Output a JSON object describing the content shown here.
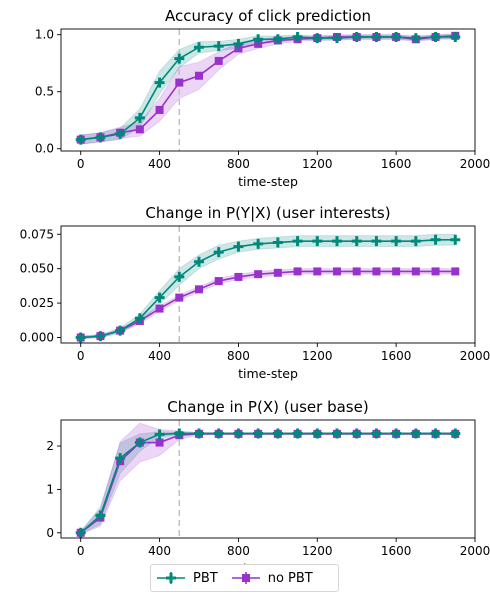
{
  "chart_data": [
    {
      "type": "line",
      "title": "Accuracy of click prediction",
      "xlabel": "time-step",
      "ylabel": "",
      "xlim": [
        -100,
        2000
      ],
      "ylim": [
        -0.02,
        1.05
      ],
      "xticks": [
        "0",
        "400",
        "800",
        "1200",
        "1600",
        "2000"
      ],
      "yticks": [
        "0.0",
        "0.5",
        "1.0"
      ],
      "vline_x": 500,
      "x": [
        0,
        100,
        200,
        300,
        400,
        500,
        600,
        700,
        800,
        900,
        1000,
        1100,
        1200,
        1300,
        1400,
        1500,
        1600,
        1700,
        1800,
        1900
      ],
      "series": [
        {
          "name": "PBT",
          "color": "#00897b",
          "values": [
            0.08,
            0.1,
            0.13,
            0.27,
            0.58,
            0.79,
            0.89,
            0.9,
            0.92,
            0.96,
            0.96,
            0.98,
            0.97,
            0.97,
            0.98,
            0.98,
            0.98,
            0.97,
            0.98,
            0.98
          ],
          "band": [
            0.04,
            0.04,
            0.05,
            0.08,
            0.1,
            0.08,
            0.05,
            0.04,
            0.04,
            0.03,
            0.03,
            0.02,
            0.02,
            0.02,
            0.02,
            0.02,
            0.02,
            0.02,
            0.02,
            0.02
          ]
        },
        {
          "name": "no PBT",
          "color": "#9932cc",
          "values": [
            0.08,
            0.1,
            0.14,
            0.17,
            0.34,
            0.58,
            0.64,
            0.77,
            0.88,
            0.92,
            0.95,
            0.96,
            0.97,
            0.98,
            0.98,
            0.98,
            0.98,
            0.96,
            0.98,
            0.99
          ],
          "band": [
            0.04,
            0.04,
            0.05,
            0.06,
            0.1,
            0.14,
            0.12,
            0.08,
            0.05,
            0.04,
            0.03,
            0.02,
            0.02,
            0.02,
            0.02,
            0.02,
            0.02,
            0.02,
            0.02,
            0.02
          ]
        }
      ]
    },
    {
      "type": "line",
      "title": "Change in P(Y|X) (user interests)",
      "xlabel": "time-step",
      "ylabel": "",
      "xlim": [
        -100,
        2000
      ],
      "ylim": [
        -0.004,
        0.081
      ],
      "xticks": [
        "0",
        "400",
        "800",
        "1200",
        "1600",
        "2000"
      ],
      "yticks": [
        "0.000",
        "0.025",
        "0.050",
        "0.075"
      ],
      "vline_x": 500,
      "x": [
        0,
        100,
        200,
        300,
        400,
        500,
        600,
        700,
        800,
        900,
        1000,
        1100,
        1200,
        1300,
        1400,
        1500,
        1600,
        1700,
        1800,
        1900
      ],
      "series": [
        {
          "name": "PBT",
          "color": "#00897b",
          "values": [
            0.0,
            0.001,
            0.005,
            0.014,
            0.029,
            0.044,
            0.055,
            0.062,
            0.066,
            0.068,
            0.069,
            0.07,
            0.07,
            0.07,
            0.07,
            0.07,
            0.07,
            0.07,
            0.071,
            0.071
          ],
          "band": [
            0.001,
            0.001,
            0.002,
            0.003,
            0.005,
            0.006,
            0.005,
            0.005,
            0.004,
            0.004,
            0.004,
            0.004,
            0.004,
            0.004,
            0.004,
            0.004,
            0.004,
            0.004,
            0.004,
            0.004
          ]
        },
        {
          "name": "no PBT",
          "color": "#9932cc",
          "values": [
            0.0,
            0.001,
            0.005,
            0.012,
            0.021,
            0.029,
            0.035,
            0.041,
            0.044,
            0.046,
            0.047,
            0.048,
            0.048,
            0.048,
            0.048,
            0.048,
            0.048,
            0.048,
            0.048,
            0.048
          ],
          "band": [
            0.001,
            0.001,
            0.001,
            0.002,
            0.002,
            0.002,
            0.002,
            0.002,
            0.002,
            0.002,
            0.002,
            0.002,
            0.002,
            0.002,
            0.002,
            0.002,
            0.002,
            0.002,
            0.002,
            0.002
          ]
        }
      ]
    },
    {
      "type": "line",
      "title": "Change in P(X) (user base)",
      "xlabel": "time-step",
      "ylabel": "",
      "xlim": [
        -100,
        2000
      ],
      "ylim": [
        -0.12,
        2.6
      ],
      "xticks": [
        "0",
        "400",
        "800",
        "1200",
        "1600",
        "2000"
      ],
      "yticks": [
        "0",
        "1",
        "2"
      ],
      "vline_x": 500,
      "x": [
        0,
        100,
        200,
        300,
        400,
        500,
        600,
        700,
        800,
        900,
        1000,
        1100,
        1200,
        1300,
        1400,
        1500,
        1600,
        1700,
        1800,
        1900
      ],
      "series": [
        {
          "name": "PBT",
          "color": "#00897b",
          "values": [
            0.0,
            0.4,
            1.72,
            2.08,
            2.27,
            2.29,
            2.29,
            2.29,
            2.29,
            2.29,
            2.29,
            2.29,
            2.29,
            2.29,
            2.29,
            2.29,
            2.29,
            2.29,
            2.29,
            2.29
          ],
          "band": [
            0.03,
            0.2,
            0.35,
            0.2,
            0.06,
            0.03,
            0.02,
            0.02,
            0.02,
            0.02,
            0.02,
            0.02,
            0.02,
            0.02,
            0.02,
            0.02,
            0.02,
            0.02,
            0.02,
            0.02
          ]
        },
        {
          "name": "no PBT",
          "color": "#9932cc",
          "values": [
            0.0,
            0.35,
            1.65,
            2.08,
            2.08,
            2.25,
            2.28,
            2.28,
            2.28,
            2.28,
            2.28,
            2.28,
            2.28,
            2.28,
            2.28,
            2.28,
            2.28,
            2.28,
            2.28,
            2.28
          ],
          "band": [
            0.03,
            0.2,
            0.45,
            0.45,
            0.3,
            0.1,
            0.03,
            0.02,
            0.02,
            0.02,
            0.02,
            0.02,
            0.02,
            0.02,
            0.02,
            0.02,
            0.02,
            0.02,
            0.02,
            0.02
          ]
        }
      ]
    }
  ],
  "legend": {
    "placement": "bottom-center",
    "items": [
      {
        "label": "PBT",
        "color": "#00897b",
        "marker": "plus"
      },
      {
        "label": "no PBT",
        "color": "#9932cc",
        "marker": "square"
      }
    ]
  }
}
